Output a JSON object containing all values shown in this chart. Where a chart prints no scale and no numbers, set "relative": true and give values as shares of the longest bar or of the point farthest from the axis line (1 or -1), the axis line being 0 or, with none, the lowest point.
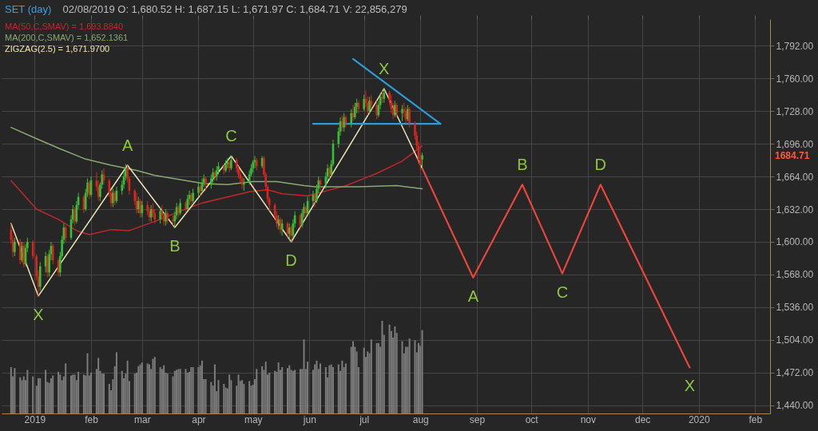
{
  "chart_data": [
    {
      "type": "candlestick",
      "title": "SET (day)",
      "subtitle": "02/08/2019 O: 1,680.52 H: 1,687.15 L: 1,671.97 C: 1,684.71 V: 22,856,279",
      "x": [
        "2018-12-19",
        "2018-12-20",
        "2018-12-21",
        "2018-12-24",
        "2018-12-25",
        "2018-12-26",
        "2018-12-27",
        "2018-12-28",
        "2018-12-31",
        "2019-01-02",
        "2019-01-03",
        "2019-01-04",
        "2019-01-07",
        "2019-01-08",
        "2019-01-09",
        "2019-01-10",
        "2019-01-11",
        "2019-01-14",
        "2019-01-15",
        "2019-01-16",
        "2019-01-17",
        "2019-01-18",
        "2019-01-21",
        "2019-01-22",
        "2019-01-23",
        "2019-01-24",
        "2019-01-25",
        "2019-01-28",
        "2019-01-29",
        "2019-01-30",
        "2019-01-31",
        "2019-02-01",
        "2019-02-04",
        "2019-02-05",
        "2019-02-06",
        "2019-02-07",
        "2019-02-08",
        "2019-02-11",
        "2019-02-12",
        "2019-02-13",
        "2019-02-14",
        "2019-02-15",
        "2019-02-18",
        "2019-02-19",
        "2019-02-20",
        "2019-02-21",
        "2019-02-22",
        "2019-02-25",
        "2019-02-26",
        "2019-02-27",
        "2019-02-28",
        "2019-03-01",
        "2019-03-04",
        "2019-03-05",
        "2019-03-06",
        "2019-03-07",
        "2019-03-08",
        "2019-03-11",
        "2019-03-12",
        "2019-03-13",
        "2019-03-14",
        "2019-03-15",
        "2019-03-18",
        "2019-03-19",
        "2019-03-20",
        "2019-03-21",
        "2019-03-22",
        "2019-03-25",
        "2019-03-26",
        "2019-03-27",
        "2019-03-28",
        "2019-03-29",
        "2019-04-01",
        "2019-04-02",
        "2019-04-03",
        "2019-04-04",
        "2019-04-05",
        "2019-04-08",
        "2019-04-09",
        "2019-04-10",
        "2019-04-11",
        "2019-04-12",
        "2019-04-15",
        "2019-04-16",
        "2019-04-17",
        "2019-04-18",
        "2019-04-19",
        "2019-04-22",
        "2019-04-23",
        "2019-04-24",
        "2019-04-25",
        "2019-04-26",
        "2019-04-29",
        "2019-04-30",
        "2019-05-01",
        "2019-05-02",
        "2019-05-03",
        "2019-05-06",
        "2019-05-07",
        "2019-05-08",
        "2019-05-09",
        "2019-05-10",
        "2019-05-13",
        "2019-05-14",
        "2019-05-15",
        "2019-05-16",
        "2019-05-17",
        "2019-05-20",
        "2019-05-21",
        "2019-05-22",
        "2019-05-23",
        "2019-05-24",
        "2019-05-27",
        "2019-05-28",
        "2019-05-29",
        "2019-05-30",
        "2019-05-31",
        "2019-06-03",
        "2019-06-04",
        "2019-06-05",
        "2019-06-06",
        "2019-06-07",
        "2019-06-10",
        "2019-06-11",
        "2019-06-12",
        "2019-06-13",
        "2019-06-14",
        "2019-06-17",
        "2019-06-18",
        "2019-06-19",
        "2019-06-20",
        "2019-06-21",
        "2019-06-24",
        "2019-06-25",
        "2019-06-26",
        "2019-06-27",
        "2019-06-28",
        "2019-07-01",
        "2019-07-02",
        "2019-07-03",
        "2019-07-04",
        "2019-07-05",
        "2019-07-08",
        "2019-07-09",
        "2019-07-10",
        "2019-07-11",
        "2019-07-12",
        "2019-07-15",
        "2019-07-16",
        "2019-07-17",
        "2019-07-18",
        "2019-07-19",
        "2019-07-22",
        "2019-07-23",
        "2019-07-24",
        "2019-07-25",
        "2019-07-26",
        "2019-07-29",
        "2019-07-30",
        "2019-07-31",
        "2019-08-01",
        "2019-08-02"
      ],
      "ohlc": [
        [
          1612,
          1618,
          1598,
          1602
        ],
        [
          1602,
          1606,
          1585,
          1590
        ],
        [
          1590,
          1604,
          1586,
          1600
        ],
        [
          1600,
          1603,
          1578,
          1582
        ],
        [
          1582,
          1600,
          1580,
          1596
        ],
        [
          1596,
          1600,
          1575,
          1578
        ],
        [
          1578,
          1598,
          1576,
          1594
        ],
        [
          1594,
          1604,
          1590,
          1600
        ],
        [
          1600,
          1602,
          1583,
          1586
        ],
        [
          1586,
          1588,
          1562,
          1566
        ],
        [
          1566,
          1572,
          1547,
          1556
        ],
        [
          1556,
          1580,
          1552,
          1576
        ],
        [
          1576,
          1590,
          1570,
          1586
        ],
        [
          1586,
          1588,
          1565,
          1570
        ],
        [
          1570,
          1592,
          1566,
          1588
        ],
        [
          1588,
          1600,
          1582,
          1596
        ],
        [
          1596,
          1598,
          1578,
          1582
        ],
        [
          1582,
          1584,
          1566,
          1570
        ],
        [
          1570,
          1590,
          1566,
          1586
        ],
        [
          1586,
          1606,
          1584,
          1602
        ],
        [
          1602,
          1618,
          1598,
          1614
        ],
        [
          1614,
          1616,
          1600,
          1604
        ],
        [
          1604,
          1626,
          1602,
          1622
        ],
        [
          1622,
          1636,
          1618,
          1632
        ],
        [
          1632,
          1634,
          1616,
          1620
        ],
        [
          1620,
          1640,
          1618,
          1636
        ],
        [
          1636,
          1648,
          1632,
          1644
        ],
        [
          1644,
          1646,
          1628,
          1632
        ],
        [
          1632,
          1652,
          1630,
          1648
        ],
        [
          1648,
          1662,
          1644,
          1658
        ],
        [
          1658,
          1660,
          1642,
          1646
        ],
        [
          1646,
          1664,
          1644,
          1660
        ],
        [
          1660,
          1668,
          1650,
          1654
        ],
        [
          1654,
          1660,
          1640,
          1644
        ],
        [
          1644,
          1658,
          1640,
          1656
        ],
        [
          1656,
          1670,
          1652,
          1666
        ],
        [
          1666,
          1672,
          1656,
          1660
        ],
        [
          1660,
          1662,
          1644,
          1648
        ],
        [
          1648,
          1650,
          1634,
          1638
        ],
        [
          1638,
          1652,
          1634,
          1648
        ],
        [
          1648,
          1650,
          1636,
          1640
        ],
        [
          1640,
          1654,
          1638,
          1650
        ],
        [
          1650,
          1660,
          1646,
          1656
        ],
        [
          1656,
          1668,
          1652,
          1664
        ],
        [
          1664,
          1676,
          1660,
          1672
        ],
        [
          1672,
          1675,
          1658,
          1662
        ],
        [
          1662,
          1664,
          1646,
          1650
        ],
        [
          1650,
          1652,
          1636,
          1640
        ],
        [
          1640,
          1648,
          1628,
          1632
        ],
        [
          1632,
          1644,
          1628,
          1640
        ],
        [
          1640,
          1642,
          1624,
          1628
        ],
        [
          1628,
          1640,
          1624,
          1636
        ],
        [
          1636,
          1640,
          1626,
          1630
        ],
        [
          1630,
          1634,
          1620,
          1624
        ],
        [
          1624,
          1636,
          1620,
          1632
        ],
        [
          1632,
          1638,
          1624,
          1628
        ],
        [
          1628,
          1632,
          1618,
          1622
        ],
        [
          1622,
          1634,
          1618,
          1630
        ],
        [
          1630,
          1636,
          1622,
          1626
        ],
        [
          1626,
          1628,
          1616,
          1620
        ],
        [
          1620,
          1632,
          1616,
          1628
        ],
        [
          1628,
          1630,
          1618,
          1622
        ],
        [
          1622,
          1626,
          1616,
          1620
        ],
        [
          1620,
          1630,
          1614,
          1626
        ],
        [
          1626,
          1638,
          1622,
          1634
        ],
        [
          1634,
          1636,
          1624,
          1628
        ],
        [
          1628,
          1642,
          1626,
          1638
        ],
        [
          1638,
          1640,
          1628,
          1632
        ],
        [
          1632,
          1646,
          1630,
          1642
        ],
        [
          1642,
          1650,
          1636,
          1646
        ],
        [
          1646,
          1648,
          1636,
          1640
        ],
        [
          1640,
          1652,
          1638,
          1648
        ],
        [
          1648,
          1658,
          1644,
          1654
        ],
        [
          1654,
          1656,
          1644,
          1650
        ],
        [
          1650,
          1662,
          1648,
          1658
        ],
        [
          1658,
          1666,
          1654,
          1662
        ],
        [
          1662,
          1664,
          1650,
          1656
        ],
        [
          1656,
          1666,
          1652,
          1662
        ],
        [
          1662,
          1672,
          1658,
          1668
        ],
        [
          1668,
          1670,
          1660,
          1664
        ],
        [
          1664,
          1674,
          1660,
          1670
        ],
        [
          1670,
          1678,
          1666,
          1674
        ],
        [
          1674,
          1676,
          1666,
          1670
        ],
        [
          1670,
          1680,
          1668,
          1676
        ],
        [
          1676,
          1682,
          1672,
          1678
        ],
        [
          1678,
          1680,
          1668,
          1672
        ],
        [
          1672,
          1684,
          1670,
          1680
        ],
        [
          1680,
          1682,
          1668,
          1672
        ],
        [
          1672,
          1674,
          1662,
          1666
        ],
        [
          1666,
          1670,
          1658,
          1662
        ],
        [
          1662,
          1664,
          1652,
          1656
        ],
        [
          1656,
          1662,
          1650,
          1658
        ],
        [
          1658,
          1670,
          1656,
          1666
        ],
        [
          1666,
          1676,
          1664,
          1672
        ],
        [
          1672,
          1680,
          1668,
          1678
        ],
        [
          1678,
          1684,
          1672,
          1680
        ],
        [
          1680,
          1682,
          1670,
          1674
        ],
        [
          1674,
          1684,
          1672,
          1682
        ],
        [
          1682,
          1684,
          1664,
          1666
        ],
        [
          1666,
          1668,
          1650,
          1654
        ],
        [
          1654,
          1656,
          1638,
          1642
        ],
        [
          1642,
          1644,
          1630,
          1636
        ],
        [
          1636,
          1638,
          1622,
          1626
        ],
        [
          1626,
          1630,
          1614,
          1618
        ],
        [
          1618,
          1626,
          1612,
          1622
        ],
        [
          1622,
          1624,
          1608,
          1612
        ],
        [
          1612,
          1622,
          1606,
          1618
        ],
        [
          1618,
          1620,
          1604,
          1608
        ],
        [
          1608,
          1618,
          1602,
          1614
        ],
        [
          1614,
          1616,
          1600,
          1606
        ],
        [
          1606,
          1622,
          1604,
          1618
        ],
        [
          1618,
          1630,
          1614,
          1626
        ],
        [
          1626,
          1628,
          1612,
          1616
        ],
        [
          1616,
          1632,
          1614,
          1628
        ],
        [
          1628,
          1638,
          1624,
          1634
        ],
        [
          1634,
          1636,
          1624,
          1628
        ],
        [
          1628,
          1644,
          1626,
          1640
        ],
        [
          1640,
          1650,
          1636,
          1646
        ],
        [
          1646,
          1648,
          1634,
          1640
        ],
        [
          1640,
          1656,
          1638,
          1652
        ],
        [
          1652,
          1664,
          1648,
          1660
        ],
        [
          1660,
          1662,
          1650,
          1656
        ],
        [
          1656,
          1668,
          1652,
          1664
        ],
        [
          1664,
          1676,
          1660,
          1672
        ],
        [
          1672,
          1674,
          1662,
          1666
        ],
        [
          1666,
          1680,
          1664,
          1676
        ],
        [
          1676,
          1700,
          1674,
          1696
        ],
        [
          1696,
          1712,
          1692,
          1708
        ],
        [
          1708,
          1722,
          1704,
          1718
        ],
        [
          1718,
          1724,
          1708,
          1712
        ],
        [
          1712,
          1726,
          1708,
          1722
        ],
        [
          1722,
          1724,
          1712,
          1716
        ],
        [
          1716,
          1730,
          1712,
          1726
        ],
        [
          1726,
          1734,
          1718,
          1722
        ],
        [
          1722,
          1736,
          1720,
          1732
        ],
        [
          1732,
          1740,
          1726,
          1736
        ],
        [
          1736,
          1738,
          1726,
          1730
        ],
        [
          1730,
          1744,
          1728,
          1740
        ],
        [
          1740,
          1748,
          1732,
          1736
        ],
        [
          1736,
          1742,
          1724,
          1728
        ],
        [
          1728,
          1742,
          1726,
          1738
        ],
        [
          1738,
          1744,
          1730,
          1734
        ],
        [
          1734,
          1738,
          1720,
          1724
        ],
        [
          1724,
          1738,
          1722,
          1734
        ],
        [
          1734,
          1746,
          1730,
          1742
        ],
        [
          1742,
          1748,
          1736,
          1740
        ],
        [
          1740,
          1750,
          1736,
          1746
        ],
        [
          1746,
          1748,
          1734,
          1738
        ],
        [
          1738,
          1744,
          1726,
          1730
        ],
        [
          1730,
          1736,
          1720,
          1724
        ],
        [
          1724,
          1738,
          1722,
          1734
        ],
        [
          1734,
          1736,
          1722,
          1726
        ],
        [
          1726,
          1734,
          1718,
          1730
        ],
        [
          1730,
          1736,
          1722,
          1728
        ],
        [
          1728,
          1732,
          1716,
          1720
        ],
        [
          1720,
          1734,
          1718,
          1730
        ],
        [
          1730,
          1732,
          1712,
          1716
        ],
        [
          1716,
          1718,
          1700,
          1704
        ],
        [
          1704,
          1708,
          1690,
          1694
        ],
        [
          1694,
          1698,
          1676,
          1680
        ],
        [
          1680,
          1686,
          1670,
          1676
        ],
        [
          1680.52,
          1687.15,
          1671.97,
          1684.71
        ]
      ],
      "colors": [
        "#d8261e",
        "#d8261e",
        "#35c135",
        "#d8261e",
        "#35c135",
        "#d8261e",
        "#35c135",
        "#35c135",
        "#d8261e",
        "#d8261e",
        "#d8261e",
        "#35c135",
        "#35c135",
        "#d8261e",
        "#35c135",
        "#35c135",
        "#d8261e",
        "#d8261e",
        "#35c135",
        "#35c135",
        "#35c135",
        "#d8261e",
        "#35c135",
        "#35c135",
        "#d8261e",
        "#35c135",
        "#35c135",
        "#d8261e",
        "#35c135",
        "#35c135",
        "#d8261e",
        "#35c135",
        "#d8261e",
        "#d8261e",
        "#35c135",
        "#35c135",
        "#d8261e",
        "#d8261e",
        "#d8261e",
        "#35c135",
        "#d8261e",
        "#35c135",
        "#35c135",
        "#35c135",
        "#35c135",
        "#d8261e",
        "#d8261e",
        "#d8261e",
        "#d8261e",
        "#35c135",
        "#d8261e",
        "#35c135",
        "#d8261e",
        "#d8261e",
        "#35c135",
        "#d8261e",
        "#d8261e",
        "#35c135",
        "#d8261e",
        "#d8261e",
        "#35c135",
        "#d8261e",
        "#d8261e",
        "#35c135",
        "#35c135",
        "#d8261e",
        "#35c135",
        "#d8261e",
        "#35c135",
        "#35c135",
        "#d8261e",
        "#35c135",
        "#35c135",
        "#d8261e",
        "#35c135",
        "#35c135",
        "#d8261e",
        "#35c135",
        "#35c135",
        "#d8261e",
        "#35c135",
        "#35c135",
        "#d8261e",
        "#35c135",
        "#35c135",
        "#d8261e",
        "#35c135",
        "#d8261e",
        "#d8261e",
        "#d8261e",
        "#d8261e",
        "#35c135",
        "#35c135",
        "#35c135",
        "#35c135",
        "#35c135",
        "#d8261e",
        "#35c135",
        "#d8261e",
        "#d8261e",
        "#d8261e",
        "#d8261e",
        "#d8261e",
        "#d8261e",
        "#35c135",
        "#d8261e",
        "#35c135",
        "#d8261e",
        "#35c135",
        "#d8261e",
        "#35c135",
        "#35c135",
        "#d8261e",
        "#35c135",
        "#35c135",
        "#d8261e",
        "#35c135",
        "#35c135",
        "#d8261e",
        "#35c135",
        "#35c135",
        "#d8261e",
        "#35c135",
        "#35c135",
        "#d8261e",
        "#35c135",
        "#35c135",
        "#35c135",
        "#35c135",
        "#d8261e",
        "#35c135",
        "#d8261e",
        "#35c135",
        "#d8261e",
        "#35c135",
        "#35c135",
        "#d8261e",
        "#35c135",
        "#d8261e",
        "#d8261e",
        "#35c135",
        "#d8261e",
        "#d8261e",
        "#35c135",
        "#35c135",
        "#d8261e",
        "#35c135",
        "#d8261e",
        "#d8261e",
        "#d8261e",
        "#35c135",
        "#d8261e",
        "#35c135",
        "#d8261e",
        "#d8261e",
        "#35c135",
        "#d8261e",
        "#d8261e",
        "#d8261e",
        "#d8261e",
        "#d8261e",
        "#35c135"
      ],
      "series": [
        {
          "name": "MA(50,C,SMAV) = 1,693.8840",
          "type": "line",
          "color": "#c0282a",
          "x": [
            "2018-12-19",
            "2018-12-24",
            "2019-01-02",
            "2019-01-14",
            "2019-01-24",
            "2019-01-31",
            "2019-02-12",
            "2019-02-22",
            "2019-03-08",
            "2019-03-22",
            "2019-04-03",
            "2019-04-17",
            "2019-04-29",
            "2019-05-09",
            "2019-05-17",
            "2019-05-31",
            "2019-06-21",
            "2019-07-08",
            "2019-07-22",
            "2019-08-02"
          ],
          "values": [
            1660,
            1650,
            1632,
            1622,
            1611,
            1607,
            1612,
            1611,
            1620,
            1630,
            1638,
            1644,
            1649,
            1651,
            1647,
            1645,
            1655,
            1667,
            1679,
            1694
          ]
        },
        {
          "name": "MA(200,C,SMAV) = 1,652.1361",
          "type": "line",
          "color": "#8aa872",
          "x": [
            "2018-12-19",
            "2019-01-02",
            "2019-01-15",
            "2019-01-29",
            "2019-02-12",
            "2019-02-26",
            "2019-03-08",
            "2019-04-04",
            "2019-04-17",
            "2019-05-01",
            "2019-05-14",
            "2019-05-29",
            "2019-06-04",
            "2019-06-28",
            "2019-07-19",
            "2019-08-02"
          ],
          "values": [
            1712,
            1701,
            1691,
            1681,
            1675,
            1670,
            1665,
            1657,
            1656,
            1659,
            1659,
            1655,
            1654,
            1654,
            1655,
            1652
          ]
        },
        {
          "name": "ZIGZAG(2.5) = 1,671.9700",
          "type": "line",
          "color": "#eee6b4",
          "x": [
            "2018-12-19",
            "2019-01-03",
            "2019-02-21",
            "2019-03-19",
            "2019-04-19",
            "2019-05-22",
            "2019-07-12",
            "2019-08-02"
          ],
          "values": [
            1618,
            1547,
            1675,
            1614,
            1684,
            1600,
            1750,
            1672
          ]
        },
        {
          "type": "line",
          "color": "#e8453c",
          "x": [
            "2019-08-02",
            "2019-08-30",
            "2019-09-26",
            "2019-10-18",
            "2019-11-08",
            "2019-12-27"
          ],
          "values": [
            1672,
            1565,
            1656,
            1569,
            1656,
            1477
          ]
        },
        {
          "type": "line",
          "color": "#2e9bd6",
          "x": [
            "2019-06-25",
            "2019-08-12"
          ],
          "values": [
            1779,
            1715.5
          ]
        },
        {
          "type": "line",
          "color": "#2e9bd6",
          "x": [
            "2019-06-03",
            "2019-08-12"
          ],
          "values": [
            1715.5,
            1715.5
          ]
        }
      ],
      "xlim": [
        "2018-12-16",
        "2020-02-07"
      ],
      "ylim": [
        1432,
        1818
      ],
      "xticks": [
        {
          "value": "2019-01-01",
          "label": null
        },
        {
          "value": "2019-02-01",
          "label": null
        },
        {
          "value": "2019-03-01",
          "label": null
        },
        {
          "value": "2019-04-01",
          "label": null
        },
        {
          "value": "2019-05-01",
          "label": null
        },
        {
          "value": "2019-06-01",
          "label": null
        },
        {
          "value": "2019-07-01",
          "label": null
        },
        {
          "value": "2019-08-01",
          "label": null
        },
        {
          "value": "2019-09-01",
          "label": null
        },
        {
          "value": "2019-10-01",
          "label": null
        },
        {
          "value": "2019-11-01",
          "label": null
        },
        {
          "value": "2019-12-01",
          "label": null
        },
        {
          "value": "2020-01-01",
          "label": null
        },
        {
          "value": "2020-02-01",
          "label": null
        }
      ],
      "yticks": [
        {
          "value": 1440,
          "label": "1,440.00"
        },
        {
          "value": 1472,
          "label": "1,472.00"
        },
        {
          "value": 1504,
          "label": "1,504.00"
        },
        {
          "value": 1536,
          "label": "1,536.00"
        },
        {
          "value": 1568,
          "label": "1,568.00"
        },
        {
          "value": 1600,
          "label": "1,600.00"
        },
        {
          "value": 1632,
          "label": "1,632.00"
        },
        {
          "value": 1664,
          "label": "1,664.00"
        },
        {
          "value": 1696,
          "label": "1,696.00"
        },
        {
          "value": 1728,
          "label": "1,728.00"
        },
        {
          "value": 1760,
          "label": "1,760.00"
        },
        {
          "value": 1792,
          "label": "1,792.00"
        }
      ],
      "grid": true,
      "legend": "top left",
      "tick_labels": "y",
      "annotations": [
        {
          "text": "X",
          "x": "2019-01-03",
          "y": 1547
        },
        {
          "text": "A",
          "x": "2019-02-21",
          "y": 1675
        },
        {
          "text": "B",
          "x": "2019-03-19",
          "y": 1614
        },
        {
          "text": "C",
          "x": "2019-04-19",
          "y": 1684
        },
        {
          "text": "D",
          "x": "2019-05-22",
          "y": 1600
        },
        {
          "text": "X",
          "x": "2019-07-12",
          "y": 1750
        },
        {
          "text": "A",
          "x": "2019-08-30",
          "y": 1565
        },
        {
          "text": "B",
          "x": "2019-09-26",
          "y": 1656
        },
        {
          "text": "C",
          "x": "2019-10-18",
          "y": 1569
        },
        {
          "text": "D",
          "x": "2019-11-08",
          "y": 1656
        },
        {
          "text": "X",
          "x": "2019-12-27",
          "y": 1477
        },
        "1684.71"
      ]
    },
    {
      "type": "bar",
      "relative": true,
      "color": "#7c7c7c",
      "tick_labels": "x",
      "xlim": [
        "2018-12-16",
        "2020-02-07"
      ],
      "xticks": [
        {
          "value": "2019-01-01",
          "label": "2019"
        },
        {
          "value": "2019-02-01",
          "label": "feb"
        },
        {
          "value": "2019-03-01",
          "label": "mar"
        },
        {
          "value": "2019-04-01",
          "label": "apr"
        },
        {
          "value": "2019-05-01",
          "label": "may"
        },
        {
          "value": "2019-06-01",
          "label": "jun"
        },
        {
          "value": "2019-07-01",
          "label": "jul"
        },
        {
          "value": "2019-08-01",
          "label": "aug"
        },
        {
          "value": "2019-09-01",
          "label": "sep"
        },
        {
          "value": "2019-10-01",
          "label": "oct"
        },
        {
          "value": "2019-11-01",
          "label": "nov"
        },
        {
          "value": "2019-12-01",
          "label": "dec"
        },
        {
          "value": "2020-01-01",
          "label": "2020"
        },
        {
          "value": "2020-02-01",
          "label": "feb"
        }
      ],
      "x": [
        "2018-12-19",
        "2018-12-20",
        "2018-12-21",
        "2018-12-24",
        "2018-12-25",
        "2018-12-26",
        "2018-12-27",
        "2018-12-28",
        "2018-12-31",
        "2019-01-02",
        "2019-01-03",
        "2019-01-04",
        "2019-01-07",
        "2019-01-08",
        "2019-01-09",
        "2019-01-10",
        "2019-01-11",
        "2019-01-14",
        "2019-01-15",
        "2019-01-16",
        "2019-01-17",
        "2019-01-18",
        "2019-01-21",
        "2019-01-22",
        "2019-01-23",
        "2019-01-24",
        "2019-01-25",
        "2019-01-28",
        "2019-01-29",
        "2019-01-30",
        "2019-01-31",
        "2019-02-01",
        "2019-02-04",
        "2019-02-05",
        "2019-02-06",
        "2019-02-07",
        "2019-02-08",
        "2019-02-11",
        "2019-02-12",
        "2019-02-13",
        "2019-02-14",
        "2019-02-15",
        "2019-02-18",
        "2019-02-19",
        "2019-02-20",
        "2019-02-21",
        "2019-02-22",
        "2019-02-25",
        "2019-02-26",
        "2019-02-27",
        "2019-02-28",
        "2019-03-01",
        "2019-03-04",
        "2019-03-05",
        "2019-03-06",
        "2019-03-07",
        "2019-03-08",
        "2019-03-11",
        "2019-03-12",
        "2019-03-13",
        "2019-03-14",
        "2019-03-15",
        "2019-03-18",
        "2019-03-19",
        "2019-03-20",
        "2019-03-21",
        "2019-03-22",
        "2019-03-25",
        "2019-03-26",
        "2019-03-27",
        "2019-03-28",
        "2019-03-29",
        "2019-04-01",
        "2019-04-02",
        "2019-04-03",
        "2019-04-04",
        "2019-04-05",
        "2019-04-08",
        "2019-04-09",
        "2019-04-10",
        "2019-04-11",
        "2019-04-12",
        "2019-04-15",
        "2019-04-16",
        "2019-04-17",
        "2019-04-18",
        "2019-04-19",
        "2019-04-22",
        "2019-04-23",
        "2019-04-24",
        "2019-04-25",
        "2019-04-26",
        "2019-04-29",
        "2019-04-30",
        "2019-05-01",
        "2019-05-02",
        "2019-05-03",
        "2019-05-06",
        "2019-05-07",
        "2019-05-08",
        "2019-05-09",
        "2019-05-10",
        "2019-05-13",
        "2019-05-14",
        "2019-05-15",
        "2019-05-16",
        "2019-05-17",
        "2019-05-20",
        "2019-05-21",
        "2019-05-22",
        "2019-05-23",
        "2019-05-24",
        "2019-05-27",
        "2019-05-28",
        "2019-05-29",
        "2019-05-30",
        "2019-05-31",
        "2019-06-03",
        "2019-06-04",
        "2019-06-05",
        "2019-06-06",
        "2019-06-07",
        "2019-06-10",
        "2019-06-11",
        "2019-06-12",
        "2019-06-13",
        "2019-06-14",
        "2019-06-17",
        "2019-06-18",
        "2019-06-19",
        "2019-06-20",
        "2019-06-21",
        "2019-06-24",
        "2019-06-25",
        "2019-06-26",
        "2019-06-27",
        "2019-06-28",
        "2019-07-01",
        "2019-07-02",
        "2019-07-03",
        "2019-07-04",
        "2019-07-05",
        "2019-07-08",
        "2019-07-09",
        "2019-07-10",
        "2019-07-11",
        "2019-07-12",
        "2019-07-15",
        "2019-07-16",
        "2019-07-17",
        "2019-07-18",
        "2019-07-19",
        "2019-07-22",
        "2019-07-23",
        "2019-07-24",
        "2019-07-25",
        "2019-07-26",
        "2019-07-29",
        "2019-07-30",
        "2019-07-31",
        "2019-08-01",
        "2019-08-02"
      ],
      "values": [
        0.5,
        0.4,
        0.49,
        0.39,
        0.36,
        0.4,
        0.36,
        0.47,
        0.4,
        0.3,
        0.38,
        0.38,
        0.47,
        0.34,
        0.33,
        0.38,
        0.41,
        0.45,
        0.42,
        0.36,
        0.4,
        0.54,
        0.41,
        0.42,
        0.42,
        0.36,
        0.45,
        0.42,
        0.41,
        0.65,
        0.41,
        0.44,
        0.48,
        0.6,
        0.46,
        0.43,
        0.43,
        0.32,
        0.25,
        0.37,
        0.51,
        0.66,
        0.46,
        0.38,
        0.43,
        0.57,
        0.35,
        0.43,
        0.44,
        0.51,
        0.53,
        0.55,
        0.54,
        0.53,
        0.48,
        0.59,
        0.61,
        0.5,
        0.48,
        0.52,
        0.44,
        0.43,
        0.4,
        0.46,
        0.47,
        0.48,
        0.48,
        0.48,
        0.44,
        0.45,
        0.5,
        0.5,
        0.5,
        0.52,
        0.57,
        0.37,
        0.37,
        0.34,
        0.3,
        0.53,
        0.24,
        0.36,
        0.32,
        0.28,
        0.27,
        0.42,
        0.36,
        0.3,
        0.42,
        0.35,
        0.36,
        0.32,
        0.35,
        0.3,
        0.31,
        0.37,
        0.48,
        0.51,
        0.47,
        0.56,
        0.42,
        0.44,
        0.46,
        0.45,
        0.55,
        0.47,
        0.5,
        0.49,
        0.52,
        0.47,
        0.46,
        0.47,
        0.48,
        0.48,
        0.8,
        0.48,
        0.56,
        0.47,
        0.53,
        0.57,
        0.48,
        0.54,
        0.5,
        0.39,
        0.52,
        0.53,
        0.5,
        0.53,
        0.46,
        0.57,
        0.5,
        0.54,
        0.72,
        0.78,
        0.72,
        0.67,
        0.5,
        0.71,
        0.61,
        0.67,
        0.65,
        0.8,
        0.76,
        0.76,
        0.72,
        1,
        0.85,
        0.96,
        0.89,
        0.82,
        0.94,
        0.87,
        0.78,
        0.65,
        0.72,
        0.72,
        0.81,
        0.79,
        0.66,
        0.76,
        0.73,
        0.9
      ]
    }
  ]
}
